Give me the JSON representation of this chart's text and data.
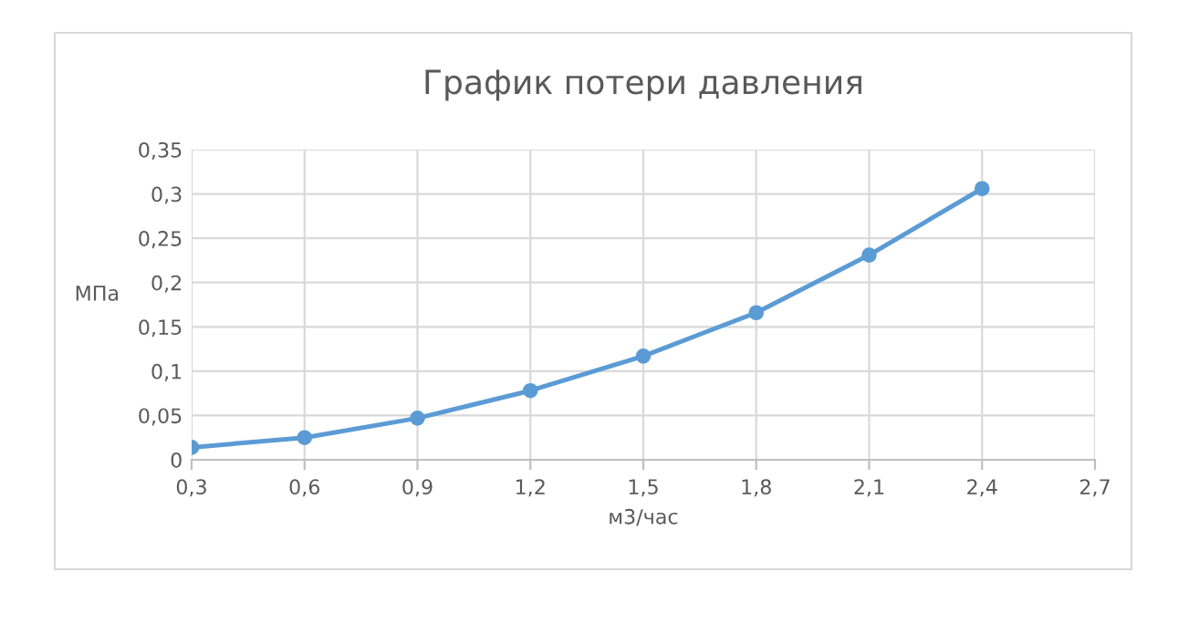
{
  "chart_data": {
    "type": "line",
    "title": "График потери давления",
    "xlabel": "м3/час",
    "ylabel": "МПа",
    "x": [
      0.3,
      0.6,
      0.9,
      1.2,
      1.5,
      1.8,
      2.1,
      2.4
    ],
    "series": [
      {
        "color": "#5b9bd5",
        "values": [
          0.014,
          0.025,
          0.047,
          0.078,
          0.117,
          0.166,
          0.231,
          0.306
        ]
      }
    ],
    "xlim": [
      0.3,
      2.7
    ],
    "xticks": [
      {
        "value": 0.3,
        "label": "0,3"
      },
      {
        "value": 0.6,
        "label": "0,6"
      },
      {
        "value": 0.9,
        "label": "0,9"
      },
      {
        "value": 1.2,
        "label": "1,2"
      },
      {
        "value": 1.5,
        "label": "1,5"
      },
      {
        "value": 1.8,
        "label": "1,8"
      },
      {
        "value": 2.1,
        "label": "2,1"
      },
      {
        "value": 2.4,
        "label": "2,4"
      },
      {
        "value": 2.7,
        "label": "2,7"
      }
    ],
    "ylim": [
      0,
      0.35
    ],
    "yticks": [
      0,
      {
        "value": 0.05,
        "label": "0,05"
      },
      {
        "value": 0.1,
        "label": "0,1"
      },
      {
        "value": 0.15,
        "label": "0,15"
      },
      {
        "value": 0.2,
        "label": "0,2"
      },
      {
        "value": 0.25,
        "label": "0,25"
      },
      {
        "value": 0.3,
        "label": "0,3"
      },
      {
        "value": 0.35,
        "label": "0,35"
      }
    ],
    "grid": true,
    "marker": "circle",
    "line_style": "solid"
  }
}
